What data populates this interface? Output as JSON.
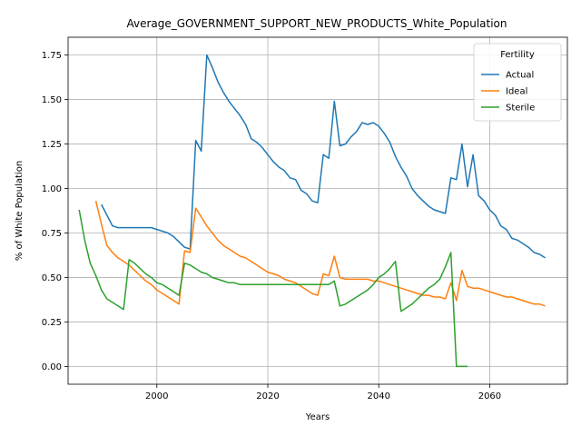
{
  "chart_data": {
    "type": "line",
    "title": "Average_GOVERNMENT_SUPPORT_NEW_PRODUCTS_White_Population",
    "xlabel": "Years",
    "ylabel": "% of White Population",
    "xlim": [
      1984,
      2074
    ],
    "ylim": [
      -0.1,
      1.85
    ],
    "x_ticks": [
      2000,
      2020,
      2040,
      2060
    ],
    "y_ticks": [
      0.0,
      0.25,
      0.5,
      0.75,
      1.0,
      1.25,
      1.5,
      1.75
    ],
    "y_tick_labels": [
      "0.00",
      "0.25",
      "0.50",
      "0.75",
      "1.00",
      "1.25",
      "1.50",
      "1.75"
    ],
    "grid": true,
    "legend": {
      "title": "Fertility",
      "position": "top-right"
    },
    "series": [
      {
        "name": "Actual",
        "color": "#1f77b4",
        "points": [
          [
            1990,
            0.91
          ],
          [
            1991,
            0.85
          ],
          [
            1992,
            0.79
          ],
          [
            1993,
            0.78
          ],
          [
            1994,
            0.78
          ],
          [
            1995,
            0.78
          ],
          [
            1996,
            0.78
          ],
          [
            1997,
            0.78
          ],
          [
            1998,
            0.78
          ],
          [
            1999,
            0.78
          ],
          [
            2000,
            0.77
          ],
          [
            2001,
            0.76
          ],
          [
            2002,
            0.75
          ],
          [
            2003,
            0.73
          ],
          [
            2004,
            0.7
          ],
          [
            2005,
            0.67
          ],
          [
            2006,
            0.66
          ],
          [
            2007,
            1.27
          ],
          [
            2008,
            1.21
          ],
          [
            2009,
            1.75
          ],
          [
            2010,
            1.68
          ],
          [
            2011,
            1.6
          ],
          [
            2012,
            1.54
          ],
          [
            2013,
            1.49
          ],
          [
            2014,
            1.45
          ],
          [
            2015,
            1.41
          ],
          [
            2016,
            1.36
          ],
          [
            2017,
            1.28
          ],
          [
            2018,
            1.26
          ],
          [
            2019,
            1.23
          ],
          [
            2020,
            1.19
          ],
          [
            2021,
            1.15
          ],
          [
            2022,
            1.12
          ],
          [
            2023,
            1.1
          ],
          [
            2024,
            1.06
          ],
          [
            2025,
            1.05
          ],
          [
            2026,
            0.99
          ],
          [
            2027,
            0.97
          ],
          [
            2028,
            0.93
          ],
          [
            2029,
            0.92
          ],
          [
            2030,
            1.19
          ],
          [
            2031,
            1.17
          ],
          [
            2032,
            1.49
          ],
          [
            2033,
            1.24
          ],
          [
            2034,
            1.25
          ],
          [
            2035,
            1.29
          ],
          [
            2036,
            1.32
          ],
          [
            2037,
            1.37
          ],
          [
            2038,
            1.36
          ],
          [
            2039,
            1.37
          ],
          [
            2040,
            1.35
          ],
          [
            2041,
            1.31
          ],
          [
            2042,
            1.26
          ],
          [
            2043,
            1.18
          ],
          [
            2044,
            1.12
          ],
          [
            2045,
            1.07
          ],
          [
            2046,
            1.0
          ],
          [
            2047,
            0.96
          ],
          [
            2048,
            0.93
          ],
          [
            2049,
            0.9
          ],
          [
            2050,
            0.88
          ],
          [
            2051,
            0.87
          ],
          [
            2052,
            0.86
          ],
          [
            2053,
            1.06
          ],
          [
            2054,
            1.05
          ],
          [
            2055,
            1.25
          ],
          [
            2056,
            1.01
          ],
          [
            2057,
            1.19
          ],
          [
            2058,
            0.96
          ],
          [
            2059,
            0.93
          ],
          [
            2060,
            0.88
          ],
          [
            2061,
            0.85
          ],
          [
            2062,
            0.79
          ],
          [
            2063,
            0.77
          ],
          [
            2064,
            0.72
          ],
          [
            2065,
            0.71
          ],
          [
            2066,
            0.69
          ],
          [
            2067,
            0.67
          ],
          [
            2068,
            0.64
          ],
          [
            2069,
            0.63
          ],
          [
            2070,
            0.61
          ]
        ]
      },
      {
        "name": "Ideal",
        "color": "#ff7f0e",
        "points": [
          [
            1989,
            0.93
          ],
          [
            1990,
            0.8
          ],
          [
            1991,
            0.68
          ],
          [
            1992,
            0.64
          ],
          [
            1993,
            0.61
          ],
          [
            1994,
            0.59
          ],
          [
            1995,
            0.57
          ],
          [
            1996,
            0.54
          ],
          [
            1997,
            0.51
          ],
          [
            1998,
            0.48
          ],
          [
            1999,
            0.46
          ],
          [
            2000,
            0.43
          ],
          [
            2001,
            0.41
          ],
          [
            2002,
            0.39
          ],
          [
            2003,
            0.37
          ],
          [
            2004,
            0.35
          ],
          [
            2005,
            0.65
          ],
          [
            2006,
            0.64
          ],
          [
            2007,
            0.89
          ],
          [
            2008,
            0.84
          ],
          [
            2009,
            0.79
          ],
          [
            2010,
            0.75
          ],
          [
            2011,
            0.71
          ],
          [
            2012,
            0.68
          ],
          [
            2013,
            0.66
          ],
          [
            2014,
            0.64
          ],
          [
            2015,
            0.62
          ],
          [
            2016,
            0.61
          ],
          [
            2017,
            0.59
          ],
          [
            2018,
            0.57
          ],
          [
            2019,
            0.55
          ],
          [
            2020,
            0.53
          ],
          [
            2021,
            0.52
          ],
          [
            2022,
            0.51
          ],
          [
            2023,
            0.49
          ],
          [
            2024,
            0.48
          ],
          [
            2025,
            0.47
          ],
          [
            2026,
            0.45
          ],
          [
            2027,
            0.43
          ],
          [
            2028,
            0.41
          ],
          [
            2029,
            0.4
          ],
          [
            2030,
            0.52
          ],
          [
            2031,
            0.51
          ],
          [
            2032,
            0.62
          ],
          [
            2033,
            0.5
          ],
          [
            2034,
            0.49
          ],
          [
            2035,
            0.49
          ],
          [
            2036,
            0.49
          ],
          [
            2037,
            0.49
          ],
          [
            2038,
            0.49
          ],
          [
            2039,
            0.48
          ],
          [
            2040,
            0.48
          ],
          [
            2041,
            0.47
          ],
          [
            2042,
            0.46
          ],
          [
            2043,
            0.45
          ],
          [
            2044,
            0.44
          ],
          [
            2045,
            0.43
          ],
          [
            2046,
            0.42
          ],
          [
            2047,
            0.41
          ],
          [
            2048,
            0.4
          ],
          [
            2049,
            0.4
          ],
          [
            2050,
            0.39
          ],
          [
            2051,
            0.39
          ],
          [
            2052,
            0.38
          ],
          [
            2053,
            0.47
          ],
          [
            2054,
            0.37
          ],
          [
            2055,
            0.54
          ],
          [
            2056,
            0.45
          ],
          [
            2057,
            0.44
          ],
          [
            2058,
            0.44
          ],
          [
            2059,
            0.43
          ],
          [
            2060,
            0.42
          ],
          [
            2061,
            0.41
          ],
          [
            2062,
            0.4
          ],
          [
            2063,
            0.39
          ],
          [
            2064,
            0.39
          ],
          [
            2065,
            0.38
          ],
          [
            2066,
            0.37
          ],
          [
            2067,
            0.36
          ],
          [
            2068,
            0.35
          ],
          [
            2069,
            0.35
          ],
          [
            2070,
            0.34
          ]
        ]
      },
      {
        "name": "Sterile",
        "color": "#2ca02c",
        "points": [
          [
            1986,
            0.88
          ],
          [
            1987,
            0.71
          ],
          [
            1988,
            0.58
          ],
          [
            1989,
            0.51
          ],
          [
            1990,
            0.43
          ],
          [
            1991,
            0.38
          ],
          [
            1992,
            0.36
          ],
          [
            1993,
            0.34
          ],
          [
            1994,
            0.32
          ],
          [
            1995,
            0.6
          ],
          [
            1996,
            0.58
          ],
          [
            1997,
            0.55
          ],
          [
            1998,
            0.52
          ],
          [
            1999,
            0.5
          ],
          [
            2000,
            0.47
          ],
          [
            2001,
            0.46
          ],
          [
            2002,
            0.44
          ],
          [
            2003,
            0.42
          ],
          [
            2004,
            0.4
          ],
          [
            2005,
            0.58
          ],
          [
            2006,
            0.57
          ],
          [
            2007,
            0.55
          ],
          [
            2008,
            0.53
          ],
          [
            2009,
            0.52
          ],
          [
            2010,
            0.5
          ],
          [
            2011,
            0.49
          ],
          [
            2012,
            0.48
          ],
          [
            2013,
            0.47
          ],
          [
            2014,
            0.47
          ],
          [
            2015,
            0.46
          ],
          [
            2016,
            0.46
          ],
          [
            2017,
            0.46
          ],
          [
            2018,
            0.46
          ],
          [
            2019,
            0.46
          ],
          [
            2020,
            0.46
          ],
          [
            2021,
            0.46
          ],
          [
            2022,
            0.46
          ],
          [
            2023,
            0.46
          ],
          [
            2024,
            0.46
          ],
          [
            2025,
            0.46
          ],
          [
            2026,
            0.46
          ],
          [
            2027,
            0.46
          ],
          [
            2028,
            0.46
          ],
          [
            2029,
            0.46
          ],
          [
            2030,
            0.46
          ],
          [
            2031,
            0.46
          ],
          [
            2032,
            0.48
          ],
          [
            2033,
            0.34
          ],
          [
            2034,
            0.35
          ],
          [
            2035,
            0.37
          ],
          [
            2036,
            0.39
          ],
          [
            2037,
            0.41
          ],
          [
            2038,
            0.43
          ],
          [
            2039,
            0.46
          ],
          [
            2040,
            0.5
          ],
          [
            2041,
            0.52
          ],
          [
            2042,
            0.55
          ],
          [
            2043,
            0.59
          ],
          [
            2044,
            0.31
          ],
          [
            2045,
            0.33
          ],
          [
            2046,
            0.35
          ],
          [
            2047,
            0.38
          ],
          [
            2048,
            0.41
          ],
          [
            2049,
            0.44
          ],
          [
            2050,
            0.46
          ],
          [
            2051,
            0.49
          ],
          [
            2052,
            0.56
          ],
          [
            2053,
            0.64
          ],
          [
            2054,
            0.0
          ],
          [
            2055,
            0.0
          ],
          [
            2056,
            0.0
          ]
        ]
      }
    ]
  }
}
